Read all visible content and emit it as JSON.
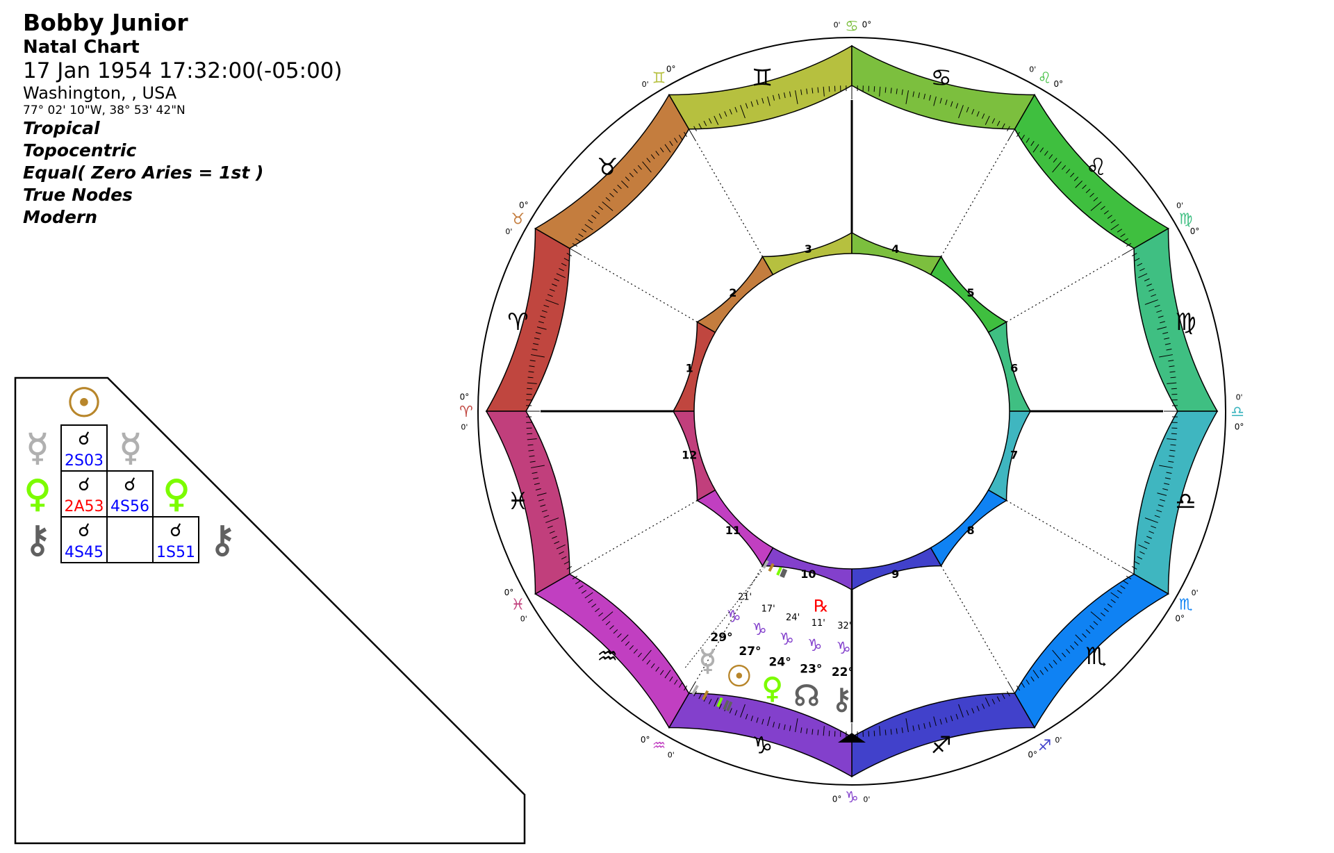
{
  "header": {
    "name": "Bobby Junior",
    "chart_type": "Natal Chart",
    "datetime": "17 Jan 1954 17:32:00(-05:00)",
    "place": "Washington, , USA",
    "coords": "77° 02' 10\"W, 38° 53' 42\"N",
    "options": [
      "Tropical",
      "Topocentric",
      "Equal( Zero Aries = 1st )",
      "True Nodes",
      "Modern"
    ]
  },
  "colors": {
    "signs": [
      "#c0463f",
      "#c47d3e",
      "#b6c03f",
      "#7cbf3e",
      "#3fbf3f",
      "#3fbf82",
      "#3fb6c0",
      "#0f82f3",
      "#4141cb",
      "#8340cc",
      "#c13fc1",
      "#c13f7c"
    ],
    "sun": "#b8862b",
    "mercury": "#b0b0b0",
    "venus": "#7cfc00",
    "node": "#606060",
    "chiron": "#606060",
    "retrograde": "#ff0000",
    "orb_separating": "#0000ff",
    "orb_applying": "#ff0000"
  },
  "signs": [
    {
      "name": "Aries",
      "glyph": "♈"
    },
    {
      "name": "Taurus",
      "glyph": "♉"
    },
    {
      "name": "Gemini",
      "glyph": "♊"
    },
    {
      "name": "Cancer",
      "glyph": "♋"
    },
    {
      "name": "Leo",
      "glyph": "♌"
    },
    {
      "name": "Virgo",
      "glyph": "♍"
    },
    {
      "name": "Libra",
      "glyph": "♎"
    },
    {
      "name": "Scorpio",
      "glyph": "♏"
    },
    {
      "name": "Sagittarius",
      "glyph": "♐"
    },
    {
      "name": "Capricorn",
      "glyph": "♑"
    },
    {
      "name": "Aquarius",
      "glyph": "♒"
    },
    {
      "name": "Pisces",
      "glyph": "♓"
    }
  ],
  "houses": [
    "1",
    "2",
    "3",
    "4",
    "5",
    "6",
    "7",
    "8",
    "9",
    "10",
    "11",
    "12"
  ],
  "cusp_labels": {
    "deg": "0°",
    "min": "0'"
  },
  "planets": [
    {
      "name": "Chiron",
      "glyph": "⚷",
      "color_key": "chiron",
      "deg": "22°",
      "sign_glyph": "♑",
      "min": "32'",
      "retro": "",
      "lon": 292.53
    },
    {
      "name": "North Node",
      "glyph": "☊",
      "color_key": "node",
      "deg": "23°",
      "sign_glyph": "♑",
      "min": "11'",
      "retro": "℞",
      "lon": 293.18
    },
    {
      "name": "Venus",
      "glyph": "♀",
      "color_key": "venus",
      "deg": "24°",
      "sign_glyph": "♑",
      "min": "24'",
      "retro": "",
      "lon": 294.4
    },
    {
      "name": "Sun",
      "glyph": "☉",
      "color_key": "sun",
      "deg": "27°",
      "sign_glyph": "♑",
      "min": "17'",
      "retro": "",
      "lon": 297.28
    },
    {
      "name": "Mercury",
      "glyph": "☿",
      "color_key": "mercury",
      "deg": "29°",
      "sign_glyph": "♑",
      "min": "21'",
      "retro": "",
      "lon": 299.35
    }
  ],
  "aspect_grid": {
    "aspect_glyph": "☌",
    "column_glyph": {
      "glyph": "☉",
      "color_key": "sun"
    },
    "rows": [
      {
        "name": "Mercury",
        "glyph": "☿",
        "color_key": "mercury"
      },
      {
        "name": "Venus",
        "glyph": "♀",
        "color_key": "venus"
      },
      {
        "name": "Chiron",
        "glyph": "⚷",
        "color_key": "chiron"
      }
    ],
    "cells": [
      {
        "row": 0,
        "col": 0,
        "orb": "2S03",
        "type": "separating"
      },
      {
        "row": 1,
        "col": 0,
        "orb": "2A53",
        "type": "applying"
      },
      {
        "row": 1,
        "col": 1,
        "orb": "4S56",
        "type": "separating"
      },
      {
        "row": 2,
        "col": 0,
        "orb": "4S45",
        "type": "separating"
      },
      {
        "row": 2,
        "col": 2,
        "orb": "1S51",
        "type": "separating"
      }
    ]
  }
}
